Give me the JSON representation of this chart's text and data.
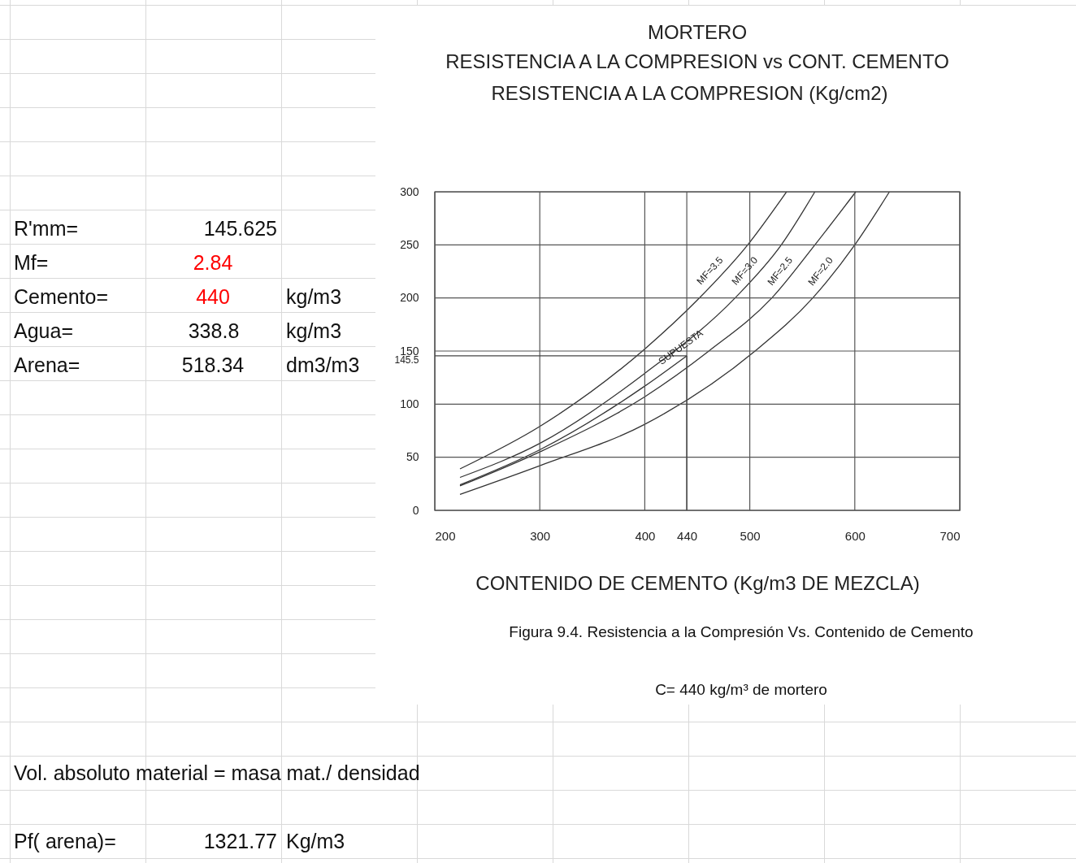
{
  "chart_data": {
    "type": "line",
    "title": "MORTERO",
    "subtitle": "RESISTENCIA A LA COMPRESION vs CONT. CEMENTO",
    "ylabel": "RESISTENCIA A LA COMPRESION  (Kg/cm2)",
    "xlabel": "CONTENIDO DE CEMENTO  (Kg/m3 DE MEZCLA)",
    "xlim": [
      200,
      700
    ],
    "xticks": [
      200,
      300,
      400,
      440,
      500,
      600,
      700
    ],
    "ylim": [
      0,
      300
    ],
    "yticks": [
      0,
      50,
      100,
      {
        "value": 145.5,
        "label": "145.5"
      },
      150,
      200,
      250,
      300
    ],
    "grid": true,
    "series": [
      {
        "name": "MF=3.5",
        "color": "#333333",
        "x": [
          224,
          300,
          400,
          450,
          498,
          535
        ],
        "values": [
          39,
          79,
          152,
          198,
          250,
          300
        ]
      },
      {
        "name": "MF=3.0",
        "color": "#333333",
        "x": [
          224,
          300,
          400,
          486,
          530,
          562
        ],
        "values": [
          31,
          63,
          129,
          200,
          250,
          300
        ]
      },
      {
        "name": "SUPUESTA",
        "color": "#333333",
        "x": [
          224,
          300,
          400,
          440
        ],
        "values": [
          24,
          57,
          117,
          145.5
        ]
      },
      {
        "name": "MF=2.5",
        "color": "#333333",
        "x": [
          224,
          300,
          400,
          461,
          521,
          562,
          601
        ],
        "values": [
          23,
          55,
          107,
          150,
          200,
          250,
          300
        ]
      },
      {
        "name": "MF=2.0",
        "color": "#333333",
        "x": [
          224,
          300,
          400,
          505,
          560,
          600,
          633
        ],
        "values": [
          15,
          42,
          81,
          150,
          200,
          250,
          300
        ]
      }
    ],
    "ref_lines": [
      {
        "axis": "y",
        "value": 145.5,
        "color": "#444444"
      },
      {
        "axis": "x",
        "value": 440,
        "color": "#444444"
      }
    ],
    "annotations": [
      "Figura 9.4. Resistencia a la Compresión Vs. Contenido de Cemento",
      "C= 440  kg/m³  de mortero",
      "R'mm=",
      "145.625",
      "Mf=",
      "2.84",
      "Cemento=",
      "440",
      "kg/m3",
      "Agua=",
      "338.8",
      "kg/m3",
      "Arena=",
      "518.34",
      "dm3/m3",
      "Vol. absoluto material = masa mat./ densidad",
      "Pf( arena)=",
      "1321.77",
      "Kg/m3"
    ]
  }
}
